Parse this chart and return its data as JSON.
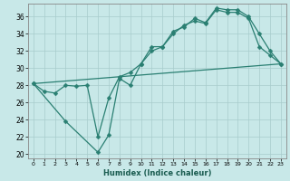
{
  "title": "",
  "xlabel": "Humidex (Indice chaleur)",
  "ylabel": "",
  "xlim": [
    -0.5,
    23.5
  ],
  "ylim": [
    19.5,
    37.5
  ],
  "yticks": [
    20,
    22,
    24,
    26,
    28,
    30,
    32,
    34,
    36
  ],
  "xticks": [
    0,
    1,
    2,
    3,
    4,
    5,
    6,
    7,
    8,
    9,
    10,
    11,
    12,
    13,
    14,
    15,
    16,
    17,
    18,
    19,
    20,
    21,
    22,
    23
  ],
  "line_color": "#2a7f72",
  "bg_color": "#c8e8e8",
  "grid_color": "#a8cccc",
  "line1_x": [
    0,
    1,
    2,
    3,
    4,
    5,
    6,
    7,
    8,
    9,
    10,
    11,
    12,
    13,
    14,
    15,
    16,
    17,
    18,
    19,
    20,
    21,
    22,
    23
  ],
  "line1_y": [
    28.2,
    27.3,
    27.1,
    28.0,
    27.9,
    28.0,
    22.0,
    26.5,
    29.0,
    29.5,
    30.5,
    32.5,
    32.5,
    34.3,
    34.8,
    35.8,
    35.3,
    37.0,
    36.8,
    36.8,
    36.0,
    34.0,
    32.0,
    30.5
  ],
  "line2_x": [
    0,
    3,
    6,
    7,
    8,
    9,
    10,
    11,
    12,
    13,
    14,
    15,
    16,
    17,
    18,
    19,
    20,
    21,
    22,
    23
  ],
  "line2_y": [
    28.2,
    23.8,
    20.2,
    22.2,
    28.8,
    28.0,
    30.5,
    32.0,
    32.5,
    34.0,
    35.0,
    35.5,
    35.2,
    36.8,
    36.5,
    36.5,
    35.8,
    32.5,
    31.5,
    30.5
  ],
  "line3_x": [
    0,
    23
  ],
  "line3_y": [
    28.2,
    30.5
  ],
  "marker_size": 2.5,
  "linewidth": 0.9
}
